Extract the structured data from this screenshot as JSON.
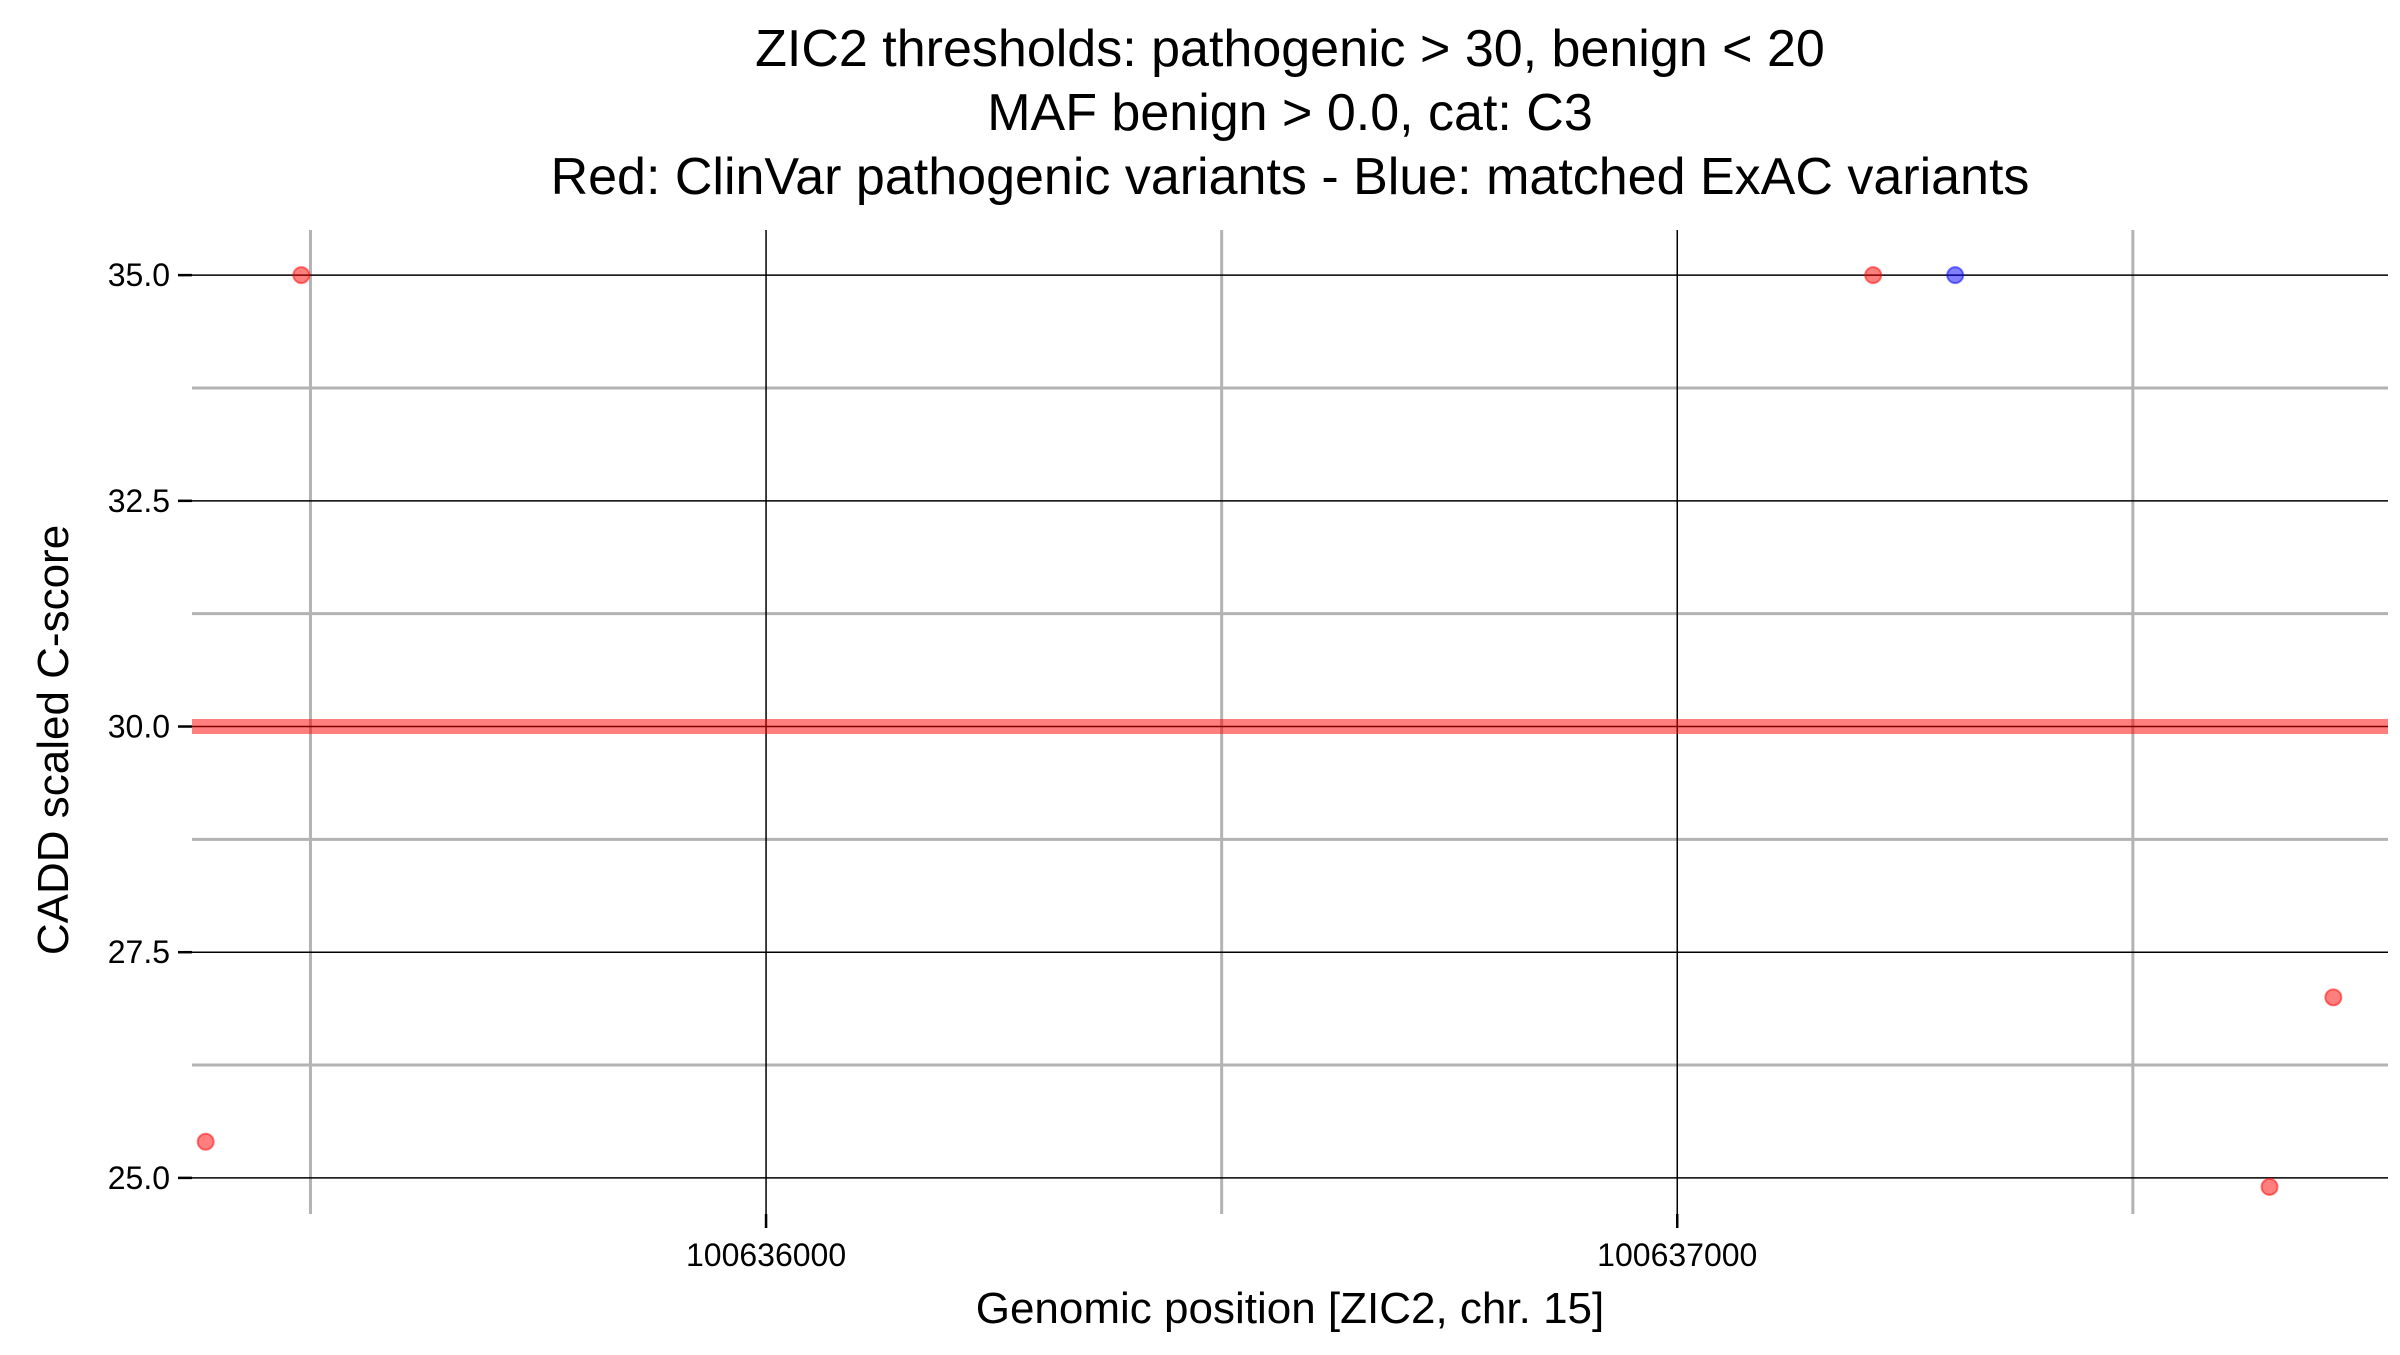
{
  "chart_data": {
    "type": "scatter",
    "title": [
      "ZIC2 thresholds: pathogenic > 30, benign < 20",
      "MAF benign > 0.0, cat: C3",
      "Red: ClinVar pathogenic variants - Blue: matched ExAC variants"
    ],
    "xlabel": "Genomic position [ZIC2, chr. 15]",
    "ylabel": "CADD scaled C-score",
    "xlim": [
      100635370,
      100637780
    ],
    "ylim": [
      24.6,
      35.5
    ],
    "x_major_ticks": [
      100636000,
      100637000
    ],
    "x_tick_labels": [
      "100636000",
      "100637000"
    ],
    "x_minor_gridlines": [
      100635500,
      100636500,
      100637500
    ],
    "y_major_ticks": [
      25.0,
      27.5,
      30.0,
      32.5,
      35.0
    ],
    "y_tick_labels": [
      "25.0",
      "27.5",
      "30.0",
      "32.5",
      "35.0"
    ],
    "y_minor_gridlines": [
      26.25,
      28.75,
      31.25,
      33.75
    ],
    "grid": true,
    "threshold_line": {
      "y": 30.0,
      "color": "#ff0000"
    },
    "series": [
      {
        "color": "#ff0000",
        "points": [
          {
            "x": 100635490,
            "y": 35.0
          },
          {
            "x": 100635385,
            "y": 25.4
          },
          {
            "x": 100637215,
            "y": 35.0
          },
          {
            "x": 100637720,
            "y": 27.0
          },
          {
            "x": 100637650,
            "y": 24.9
          }
        ]
      },
      {
        "color": "#0000ff",
        "points": [
          {
            "x": 100637305,
            "y": 35.0
          }
        ]
      }
    ]
  }
}
